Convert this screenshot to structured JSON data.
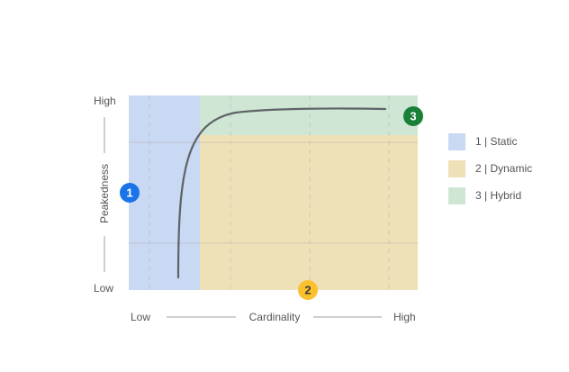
{
  "colors": {
    "static": "#c9d8f3",
    "dynamic": "#efe1b7",
    "hybrid": "#cfe6d4",
    "curve": "#5f6368",
    "badge_1": "#1a73e8",
    "badge_2": "#fbc02d",
    "badge_3": "#188038"
  },
  "axes": {
    "y_high": "High",
    "y_low": "Low",
    "y_label": "Peakedness",
    "x_low": "Low",
    "x_high": "High",
    "x_label": "Cardinality"
  },
  "badges": {
    "one": "1",
    "two": "2",
    "three": "3"
  },
  "legend": [
    {
      "label": "1 | Static",
      "color": "#c9d8f3",
      "icon": "legend-swatch"
    },
    {
      "label": "2 | Dynamic",
      "color": "#efe1b7",
      "icon": "legend-swatch"
    },
    {
      "label": "3 | Hybrid",
      "color": "#cfe6d4",
      "icon": "legend-swatch"
    }
  ]
}
